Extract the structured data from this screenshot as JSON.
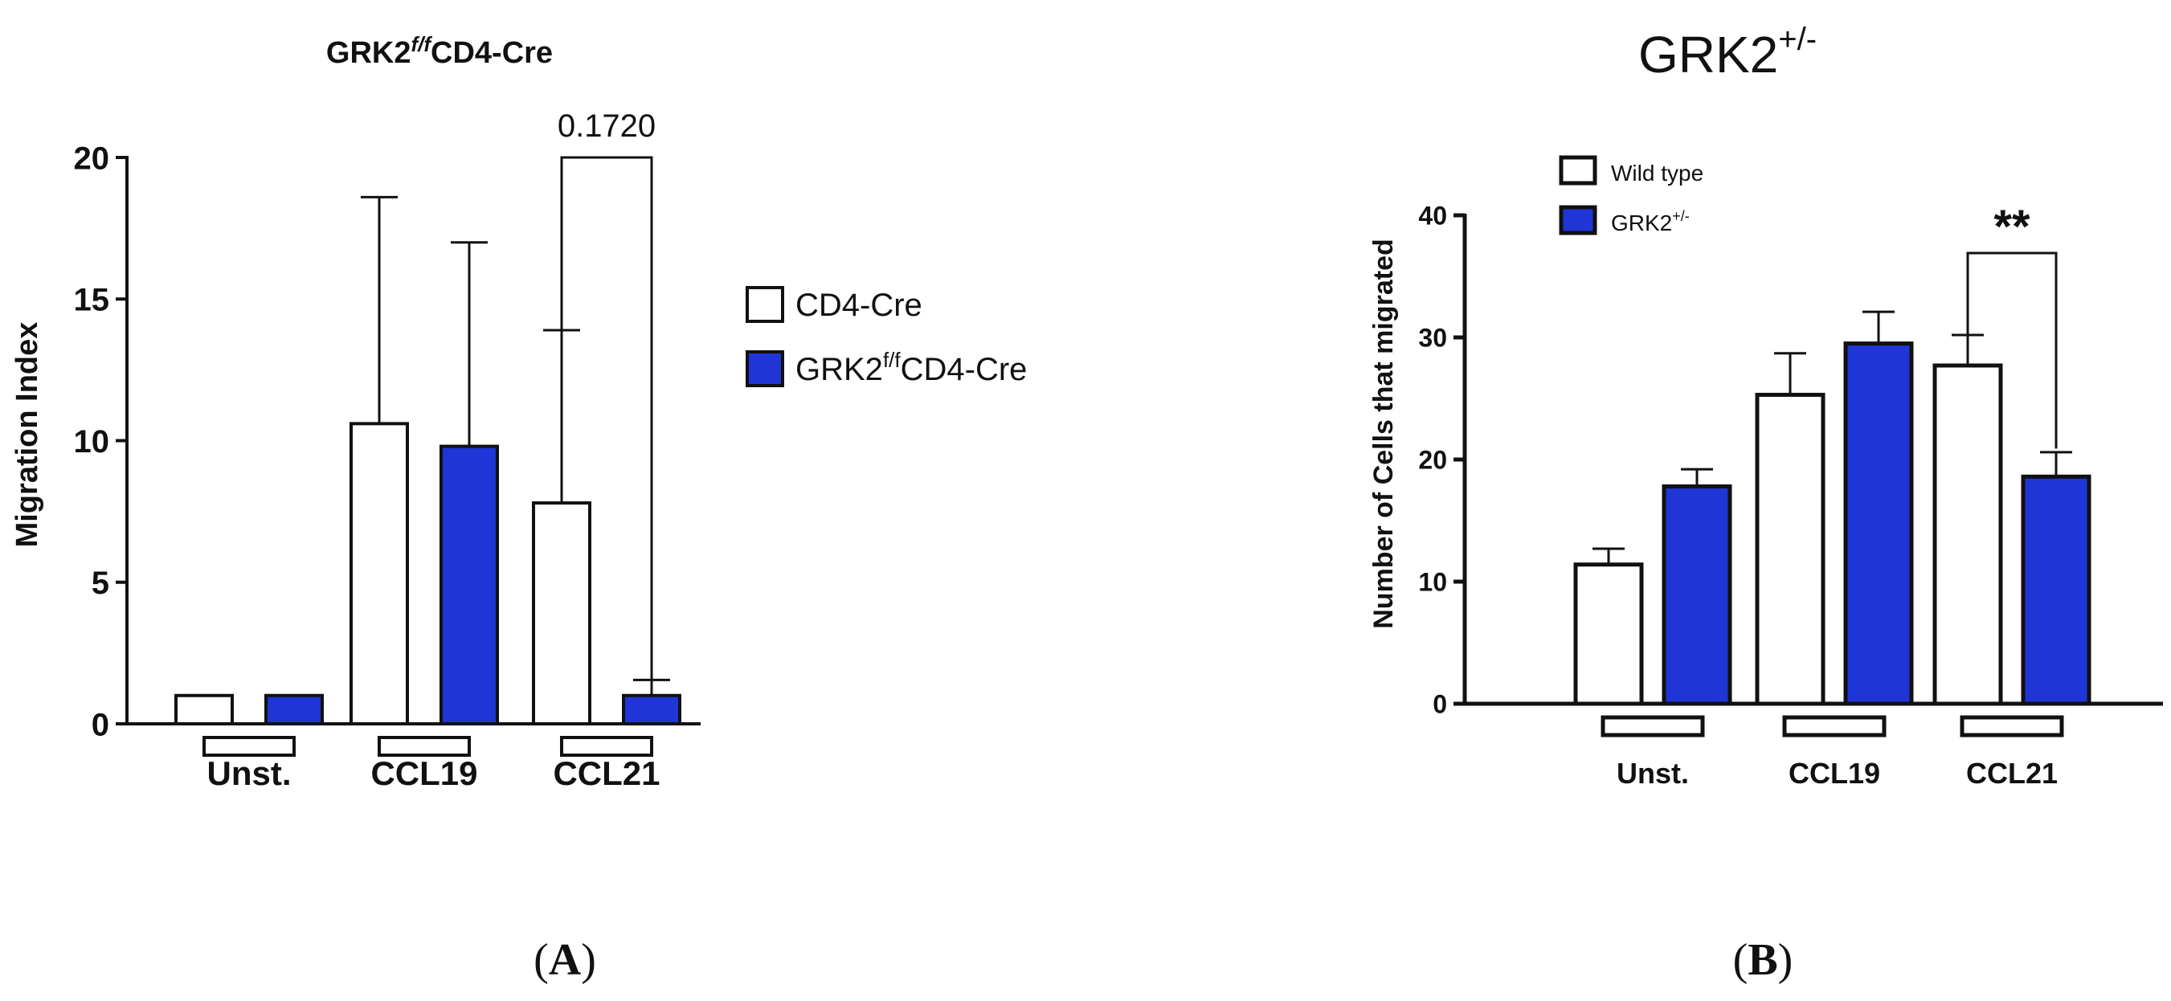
{
  "chart_data": [
    {
      "type": "bar",
      "title": "GRK2",
      "title_sup": "f/f",
      "title_tail": "CD4-Cre",
      "xlabel": "",
      "ylabel": "Migration Index",
      "ylim": [
        0,
        20
      ],
      "yticks": [
        "0",
        "5",
        "10",
        "15",
        "20"
      ],
      "categories": [
        "Unst.",
        "CCL19",
        "CCL21"
      ],
      "series": [
        {
          "name": "CD4-Cre",
          "color": "#ffffff",
          "values": [
            1.0,
            10.6,
            7.8
          ],
          "errors": [
            0.0,
            8.0,
            6.1
          ]
        },
        {
          "name": "GRK2",
          "name_sup": "f/f",
          "name_tail": "CD4-Cre",
          "color": "#1f35d6",
          "values": [
            1.0,
            9.8,
            1.0
          ],
          "errors": [
            0.0,
            7.2,
            0.55
          ]
        }
      ],
      "annotation": {
        "text": "0.1720",
        "category": "CCL21"
      },
      "legend_position": "right",
      "panel_label": "A"
    },
    {
      "type": "bar",
      "title": "GRK2",
      "title_sup": "+/-",
      "xlabel": "",
      "ylabel": "Number of Cells that migrated",
      "ylim": [
        0,
        40
      ],
      "yticks": [
        "0",
        "10",
        "20",
        "30",
        "40"
      ],
      "categories": [
        "Unst.",
        "CCL19",
        "CCL21"
      ],
      "series": [
        {
          "name": "Wild type",
          "color": "#ffffff",
          "values": [
            11.4,
            25.3,
            27.7
          ],
          "errors": [
            1.3,
            3.4,
            2.5
          ]
        },
        {
          "name": "GRK2",
          "name_sup": "+/-",
          "color": "#1f35d6",
          "values": [
            17.8,
            29.5,
            18.6
          ],
          "errors": [
            1.4,
            2.6,
            2.0
          ]
        }
      ],
      "annotation": {
        "text": "**",
        "category": "CCL21"
      },
      "legend_position": "top-left",
      "panel_label": "B"
    }
  ]
}
